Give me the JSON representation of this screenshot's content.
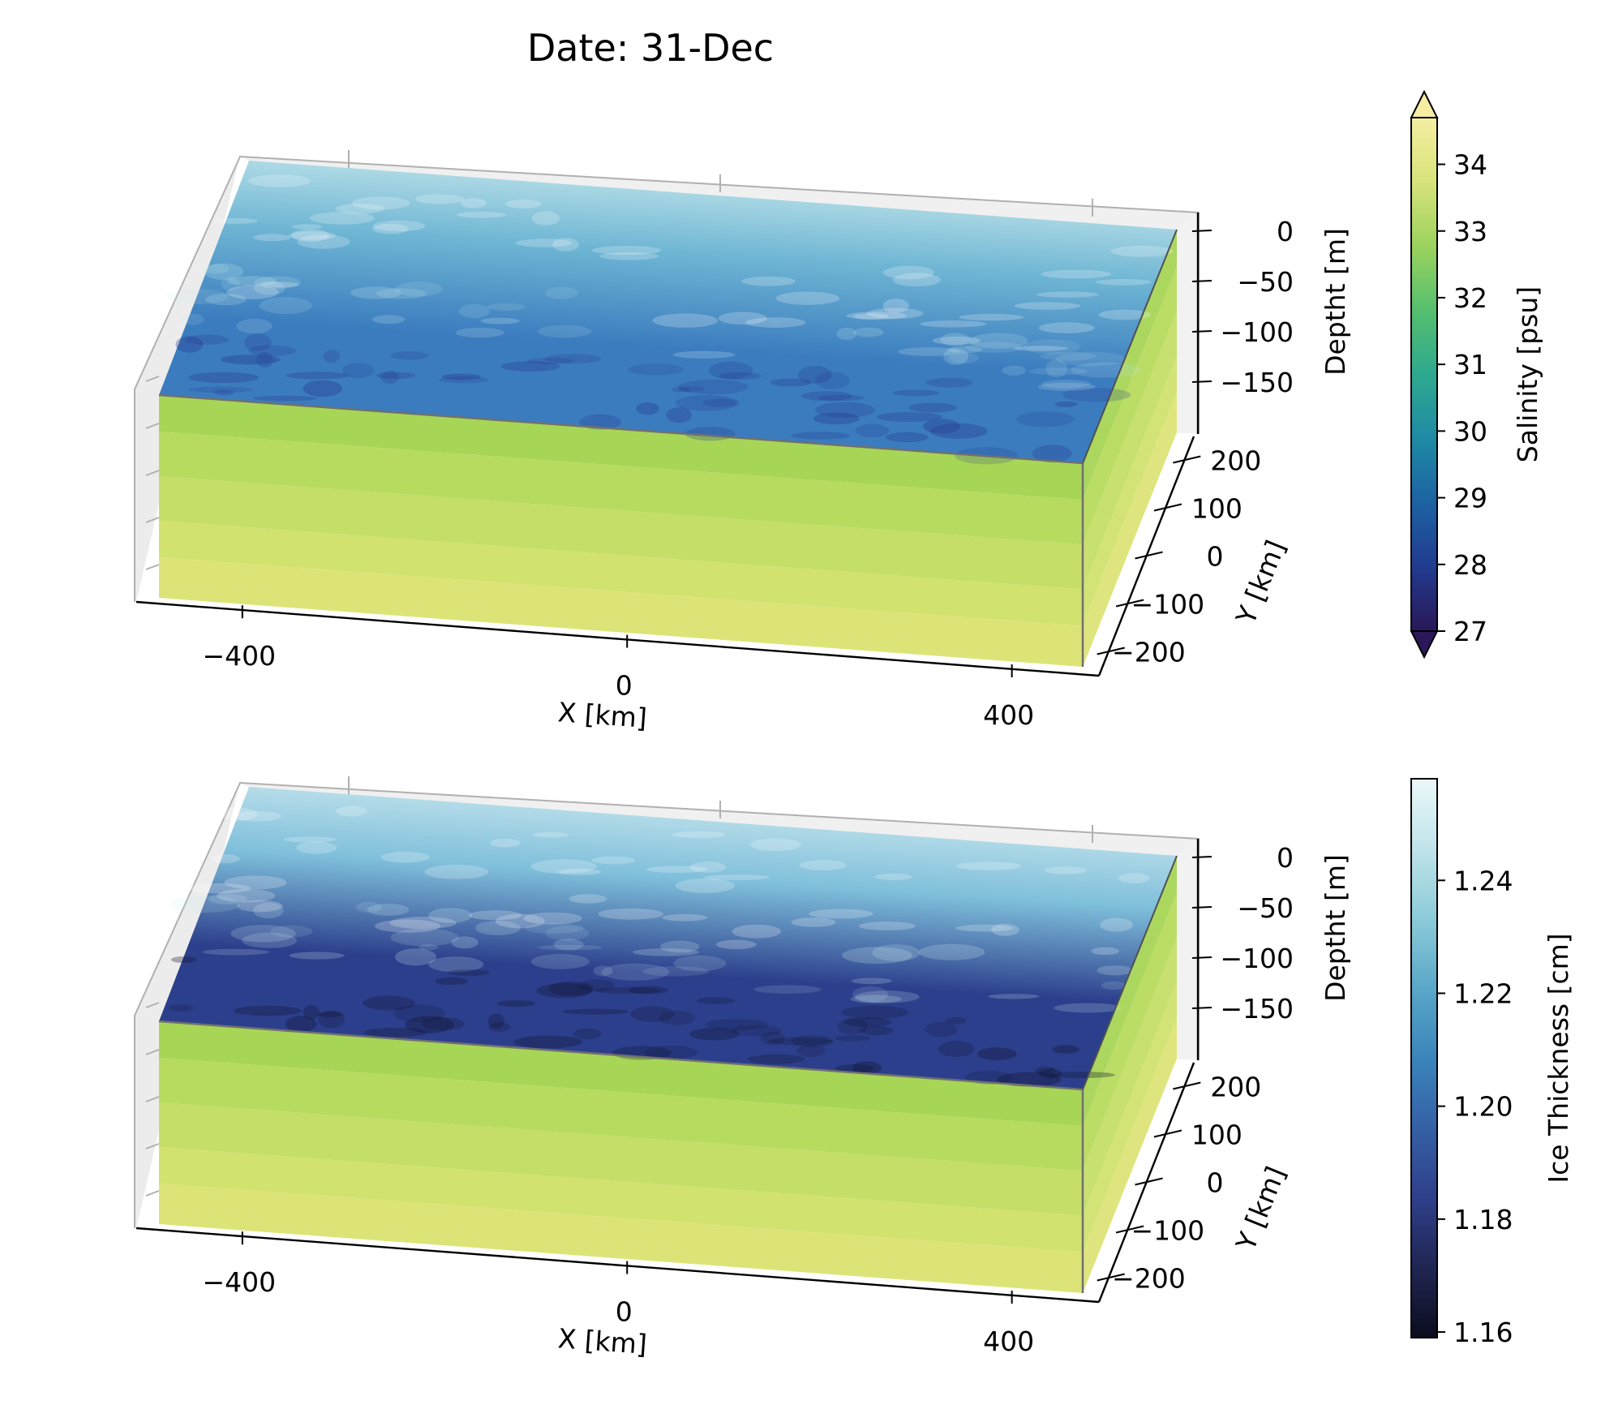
{
  "figure": {
    "title": "Date: 31-Dec"
  },
  "chart_data": [
    {
      "type": "heatmap",
      "variant": "3d-box",
      "xlabel": "X [km]",
      "ylabel": "Y [km]",
      "zlabel": "Deptht [m]",
      "x_ticks": [
        -400,
        0,
        400
      ],
      "y_ticks": [
        200,
        100,
        0,
        -100,
        -200
      ],
      "z_ticks": [
        0,
        -50,
        -100,
        -150
      ],
      "xlim": [
        -500,
        500
      ],
      "ylim": [
        -250,
        250
      ],
      "zlim": [
        -200,
        0
      ],
      "colorbar": {
        "label": "Salinity [psu]",
        "ticks": [
          27,
          28,
          29,
          30,
          31,
          32,
          33,
          34
        ],
        "range": [
          27,
          34.7
        ],
        "extend": "both",
        "colormap": [
          "#2a1858",
          "#213b8f",
          "#1d62a3",
          "#1f8aa4",
          "#2ea98f",
          "#55bf6e",
          "#9bd35d",
          "#d8e37a",
          "#f5eea2"
        ]
      },
      "top_surface_colors": {
        "far": "#c7e8ec",
        "mid": "#6fb6d4",
        "near": "#3b7cbf",
        "darkest": "#27358a"
      },
      "side_face_bands": [
        "#a7d556",
        "#b7db5e",
        "#c4de67",
        "#d2e26f",
        "#dde477"
      ]
    },
    {
      "type": "heatmap",
      "variant": "3d-box",
      "xlabel": "X [km]",
      "ylabel": "Y [km]",
      "zlabel": "Deptht [m]",
      "x_ticks": [
        -400,
        0,
        400
      ],
      "y_ticks": [
        200,
        100,
        0,
        -100,
        -200
      ],
      "z_ticks": [
        0,
        -50,
        -100,
        -150
      ],
      "xlim": [
        -500,
        500
      ],
      "ylim": [
        -250,
        250
      ],
      "zlim": [
        -200,
        0
      ],
      "colorbar": {
        "label": "Ice Thickness [cm]",
        "ticks": [
          "1.16",
          "1.18",
          "1.20",
          "1.22",
          "1.24"
        ],
        "tick_values": [
          1.16,
          1.18,
          1.2,
          1.22,
          1.24
        ],
        "range": [
          1.159,
          1.258
        ],
        "extend": "neither",
        "colormap": [
          "#0b0c1e",
          "#202652",
          "#2f3f8a",
          "#3560a6",
          "#3a85bb",
          "#59a7c8",
          "#8ccbd9",
          "#c0e4ea",
          "#ebf8f9"
        ]
      },
      "top_surface_colors": {
        "far": "#cbe8ee",
        "mid": "#7fbfdb",
        "near": "#2c3f8c",
        "darkest": "#10122e"
      },
      "side_face_bands": [
        "#a7d556",
        "#b7db5e",
        "#c4de67",
        "#d2e26f",
        "#dde477"
      ]
    }
  ]
}
